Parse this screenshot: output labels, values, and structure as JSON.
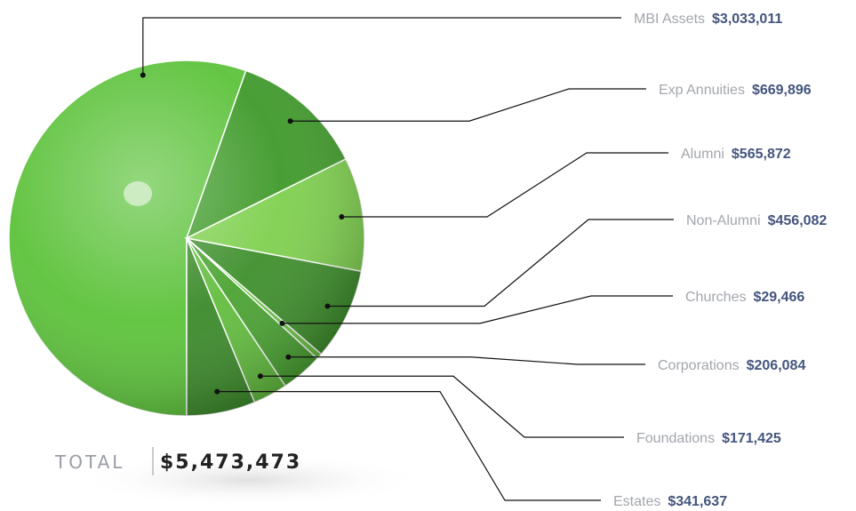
{
  "chart_data": {
    "type": "pie",
    "categories": [
      "MBI Assets",
      "Exp Annuities",
      "Alumni",
      "Non-Alumni",
      "Churches",
      "Corporations",
      "Foundations",
      "Estates"
    ],
    "values": [
      3033011,
      669896,
      565872,
      456082,
      29466,
      206084,
      171425,
      341637
    ],
    "value_labels": [
      "$3,033,011",
      "$669,896",
      "$565,872",
      "$456,082",
      "$29,466",
      "$206,084",
      "$171,425",
      "$341,637"
    ],
    "colors": [
      "#5cc23a",
      "#3f9a2a",
      "#7fd04f",
      "#3e8f2c",
      "#6cc445",
      "#4aa332",
      "#62bd3e",
      "#3b8a2a"
    ],
    "total": {
      "label": "TOTAL",
      "value": 5473473,
      "value_label": "$5,473,473"
    }
  }
}
